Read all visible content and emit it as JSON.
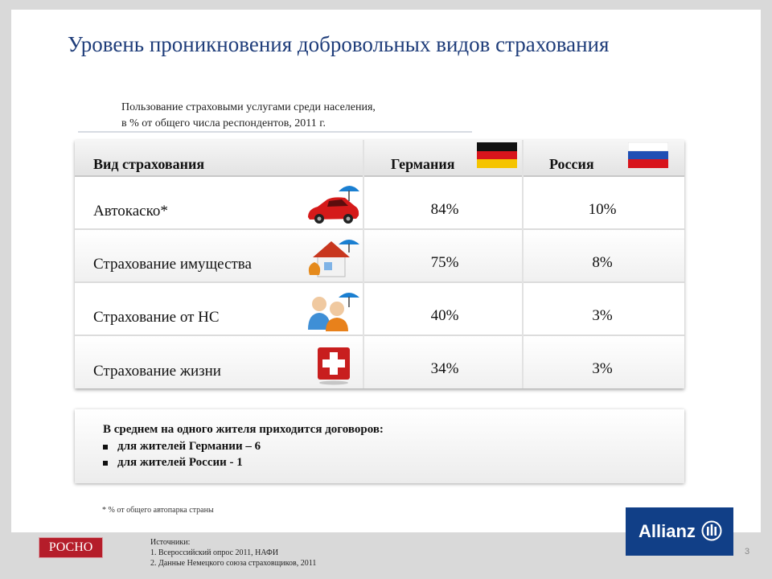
{
  "title": "Уровень проникновения добровольных видов страхования",
  "subtitle": {
    "line1": "Пользование страховыми услугами среди населения,",
    "line2": "в % от общего числа респондентов, 2011 г."
  },
  "table": {
    "headers": {
      "type": "Вид страхования",
      "germany": "Германия",
      "russia": "Россия"
    },
    "rows": [
      {
        "label": "Автокаско*",
        "icon": "car-umbrella-icon",
        "germany": "84%",
        "russia": "10%"
      },
      {
        "label": "Страхование имущества",
        "icon": "house-umbrella-icon",
        "germany": "75%",
        "russia": "8%"
      },
      {
        "label": "Страхование от НС",
        "icon": "people-umbrella-icon",
        "germany": "40%",
        "russia": "3%"
      },
      {
        "label": "Страхование жизни",
        "icon": "medical-cross-icon",
        "germany": "34%",
        "russia": "3%"
      }
    ]
  },
  "note": {
    "heading": "В среднем на одного жителя приходится договоров:",
    "items": [
      "для жителей Германии – 6",
      "для жителей России - 1"
    ]
  },
  "footnote": "* % от общего автопарка страны",
  "sources": {
    "heading": "Источники:",
    "items": [
      "1. Всероссийский опрос 2011, НАФИ",
      "2. Данные Немецкого союза страховщиков, 2011"
    ]
  },
  "logos": {
    "left": "РОСНО",
    "right": "Allianz"
  },
  "page_number": "3",
  "colors": {
    "title": "#1f3d7a",
    "allianz_blue": "#113f87",
    "rosno_red": "#b51d2a"
  }
}
